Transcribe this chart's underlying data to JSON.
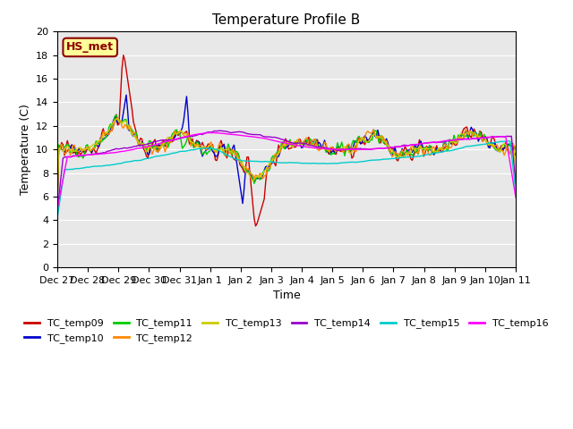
{
  "title": "Temperature Profile B",
  "xlabel": "Time",
  "ylabel": "Temperature (C)",
  "ylim": [
    0,
    20
  ],
  "yticks": [
    0,
    2,
    4,
    6,
    8,
    10,
    12,
    14,
    16,
    18,
    20
  ],
  "bg_color": "#e8e8e8",
  "annotation_text": "HS_met",
  "annotation_bg": "#ffff99",
  "annotation_border": "#8b0000",
  "series_colors": {
    "TC_temp09": "#cc0000",
    "TC_temp10": "#0000cc",
    "TC_temp11": "#00cc00",
    "TC_temp12": "#ff8800",
    "TC_temp13": "#cccc00",
    "TC_temp14": "#9900cc",
    "TC_temp15": "#00cccc",
    "TC_temp16": "#ff00ff"
  },
  "xtick_labels": [
    "Dec 27",
    "Dec 28",
    "Dec 29",
    "Dec 30",
    "Dec 31",
    "Jan 1",
    "Jan 2",
    "Jan 3",
    "Jan 4",
    "Jan 5",
    "Jan 6",
    "Jan 7",
    "Jan 8",
    "Jan 9",
    "Jan 10",
    "Jan 11"
  ],
  "n_points": 320
}
